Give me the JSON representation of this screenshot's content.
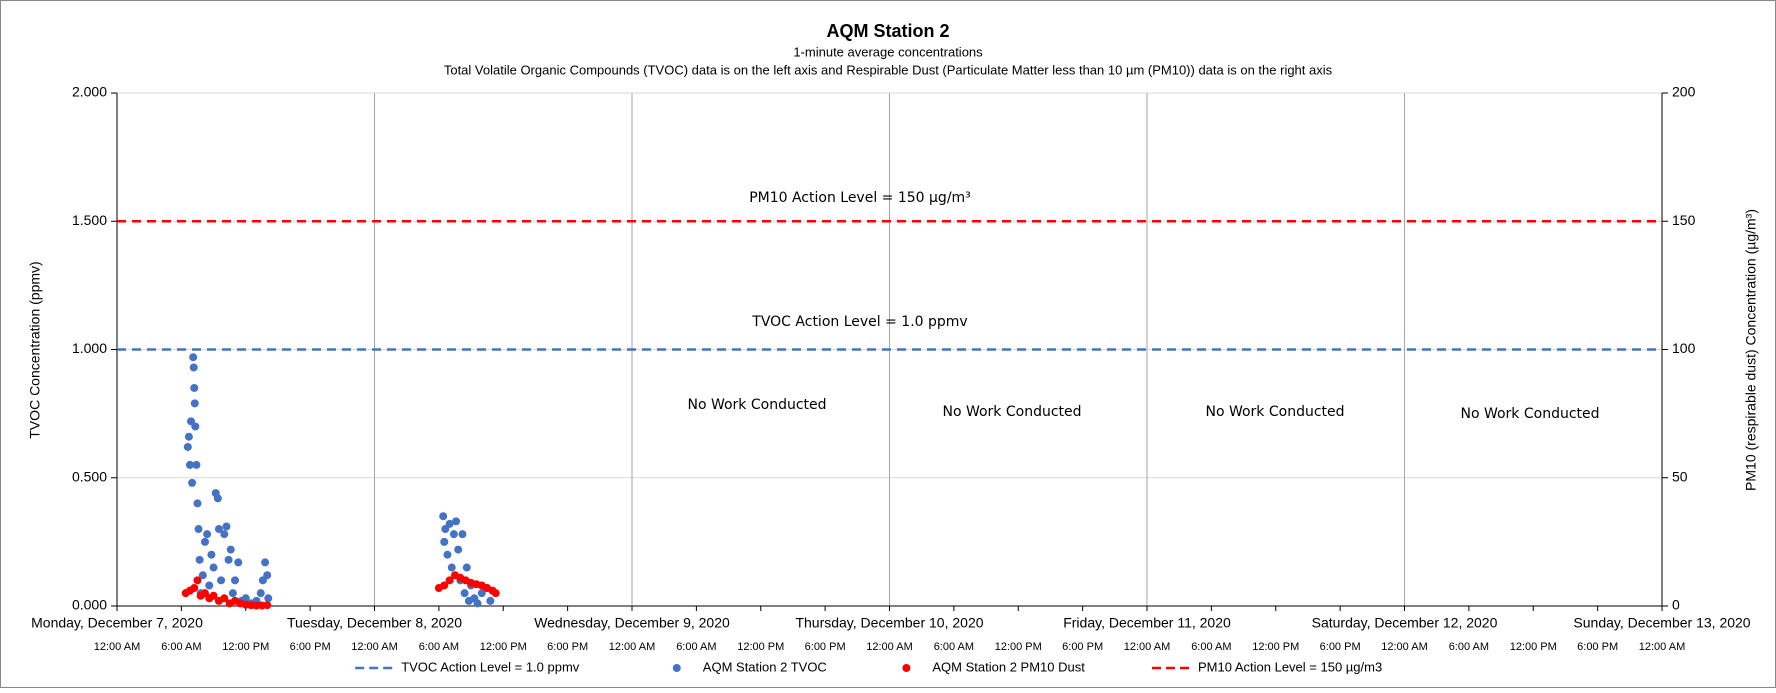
{
  "chart_data": {
    "type": "scatter",
    "title": "AQM Station 2",
    "subtitle": "1-minute average concentrations",
    "subtitle2": "Total Volatile Organic Compounds (TVOC) data is on the left axis and Respirable Dust (Particulate Matter less than 10 µm (PM10)) data is on the right axis",
    "y_label": "TVOC Concentration (ppmv)",
    "y2_label": "PM10 (respirable dust) Concentration (µg/m³)",
    "annotations": [
      "PM10 Action Level = 150 µg/m³",
      "TVOC Action Level = 1.0 ppmv",
      "No Work Conducted",
      "No Work Conducted",
      "No Work Conducted",
      "No Work Conducted"
    ],
    "xlim": [
      "2020-12-07 00:00",
      "2020-12-13 00:00"
    ],
    "xticks": [
      {
        "value": "2020-12-07 00:00",
        "label": "Monday, December 7, 2020"
      },
      {
        "value": "2020-12-08 00:00",
        "label": "Tuesday, December 8, 2020"
      },
      {
        "value": "2020-12-09 00:00",
        "label": "Wednesday, December 9, 2020"
      },
      {
        "value": "2020-12-10 00:00",
        "label": "Thursday, December 10, 2020"
      },
      {
        "value": "2020-12-11 00:00",
        "label": "Friday, December 11, 2020"
      },
      {
        "value": "2020-12-12 00:00",
        "label": "Saturday, December 12, 2020"
      },
      {
        "value": "2020-12-13 00:00",
        "label": "Sunday, December 13, 2020"
      }
    ],
    "xticks_minor": [
      {
        "value": "2020-12-07 00:00",
        "label": "12:00 AM"
      },
      {
        "value": "2020-12-07 06:00",
        "label": "6:00 AM"
      },
      {
        "value": "2020-12-07 12:00",
        "label": "12:00 PM"
      },
      {
        "value": "2020-12-07 18:00",
        "label": "6:00 PM"
      },
      {
        "value": "2020-12-08 00:00",
        "label": "12:00 AM"
      },
      {
        "value": "2020-12-08 06:00",
        "label": "6:00 AM"
      },
      {
        "value": "2020-12-08 12:00",
        "label": "12:00 PM"
      },
      {
        "value": "2020-12-08 18:00",
        "label": "6:00 PM"
      },
      {
        "value": "2020-12-09 00:00",
        "label": "12:00 AM"
      },
      {
        "value": "2020-12-09 06:00",
        "label": "6:00 AM"
      },
      {
        "value": "2020-12-09 12:00",
        "label": "12:00 PM"
      },
      {
        "value": "2020-12-09 18:00",
        "label": "6:00 PM"
      },
      {
        "value": "2020-12-10 00:00",
        "label": "12:00 AM"
      },
      {
        "value": "2020-12-10 06:00",
        "label": "6:00 AM"
      },
      {
        "value": "2020-12-10 12:00",
        "label": "12:00 PM"
      },
      {
        "value": "2020-12-10 18:00",
        "label": "6:00 PM"
      },
      {
        "value": "2020-12-11 00:00",
        "label": "12:00 AM"
      },
      {
        "value": "2020-12-11 06:00",
        "label": "6:00 AM"
      },
      {
        "value": "2020-12-11 12:00",
        "label": "12:00 PM"
      },
      {
        "value": "2020-12-11 18:00",
        "label": "6:00 PM"
      },
      {
        "value": "2020-12-12 00:00",
        "label": "12:00 AM"
      },
      {
        "value": "2020-12-12 06:00",
        "label": "6:00 AM"
      },
      {
        "value": "2020-12-12 12:00",
        "label": "12:00 PM"
      },
      {
        "value": "2020-12-12 18:00",
        "label": "6:00 PM"
      },
      {
        "value": "2020-12-13 00:00",
        "label": "12:00 AM"
      }
    ],
    "ylim": [
      0,
      2
    ],
    "yticks": [
      {
        "value": 0,
        "label": "0.000"
      },
      {
        "value": 0.5,
        "label": "0.500"
      },
      {
        "value": 1,
        "label": "1.000"
      },
      {
        "value": 1.5,
        "label": "1.500"
      },
      {
        "value": 2,
        "label": "2.000"
      }
    ],
    "y2lim": [
      0,
      200
    ],
    "y2ticks": [
      0,
      50,
      100,
      150,
      200
    ],
    "grid": true,
    "legend": "bottom",
    "series": [
      {
        "name": "TVOC Action Level = 1.0 ppmv",
        "color": "#4472c4",
        "style": "dashed",
        "x": [
          "2020-12-07 00:00",
          "2020-12-13 00:00"
        ],
        "values": [
          1,
          1
        ]
      },
      {
        "name": "AQM Station 2 TVOC",
        "color": "#4472c4",
        "style": "marker",
        "x": [
          "2020-12-07 06:36",
          "2020-12-07 06:42",
          "2020-12-07 06:48",
          "2020-12-07 06:54",
          "2020-12-07 07:00",
          "2020-12-07 07:06",
          "2020-12-07 07:09",
          "2020-12-07 07:12",
          "2020-12-07 07:15",
          "2020-12-07 07:18",
          "2020-12-07 07:24",
          "2020-12-07 07:30",
          "2020-12-07 07:36",
          "2020-12-07 07:42",
          "2020-12-07 07:48",
          "2020-12-07 08:00",
          "2020-12-07 08:12",
          "2020-12-07 08:24",
          "2020-12-07 08:36",
          "2020-12-07 08:48",
          "2020-12-07 09:00",
          "2020-12-07 09:12",
          "2020-12-07 09:24",
          "2020-12-07 09:30",
          "2020-12-07 09:42",
          "2020-12-07 10:00",
          "2020-12-07 10:12",
          "2020-12-07 10:24",
          "2020-12-07 10:36",
          "2020-12-07 10:48",
          "2020-12-07 11:00",
          "2020-12-07 11:18",
          "2020-12-07 11:36",
          "2020-12-07 12:00",
          "2020-12-07 12:30",
          "2020-12-07 13:00",
          "2020-12-07 13:24",
          "2020-12-07 13:36",
          "2020-12-07 13:48",
          "2020-12-07 14:00",
          "2020-12-07 14:06",
          "2020-12-08 06:24",
          "2020-12-08 06:30",
          "2020-12-08 06:36",
          "2020-12-08 06:48",
          "2020-12-08 07:00",
          "2020-12-08 07:12",
          "2020-12-08 07:24",
          "2020-12-08 07:36",
          "2020-12-08 07:48",
          "2020-12-08 08:00",
          "2020-12-08 08:12",
          "2020-12-08 08:24",
          "2020-12-08 08:36",
          "2020-12-08 08:48",
          "2020-12-08 09:00",
          "2020-12-08 09:18",
          "2020-12-08 09:36",
          "2020-12-08 10:00",
          "2020-12-08 10:24",
          "2020-12-08 10:48"
        ],
        "values": [
          0.62,
          0.66,
          0.55,
          0.72,
          0.48,
          0.97,
          0.93,
          0.85,
          0.79,
          0.7,
          0.55,
          0.4,
          0.3,
          0.18,
          0.05,
          0.12,
          0.25,
          0.28,
          0.08,
          0.2,
          0.15,
          0.44,
          0.42,
          0.3,
          0.1,
          0.28,
          0.31,
          0.18,
          0.22,
          0.05,
          0.1,
          0.17,
          0.02,
          0.03,
          0.01,
          0.02,
          0.05,
          0.1,
          0.17,
          0.12,
          0.03,
          0.35,
          0.25,
          0.3,
          0.2,
          0.32,
          0.15,
          0.28,
          0.33,
          0.22,
          0.1,
          0.28,
          0.05,
          0.15,
          0.02,
          0.08,
          0.03,
          0.01,
          0.05,
          0.07,
          0.02
        ]
      },
      {
        "name": "AQM Station 2 PM10 Dust",
        "color": "#ff0000",
        "style": "marker",
        "axis": "y2",
        "x": [
          "2020-12-07 06:24",
          "2020-12-07 06:48",
          "2020-12-07 07:12",
          "2020-12-07 07:30",
          "2020-12-07 07:48",
          "2020-12-07 08:12",
          "2020-12-07 08:36",
          "2020-12-07 09:00",
          "2020-12-07 09:30",
          "2020-12-07 10:00",
          "2020-12-07 10:30",
          "2020-12-07 11:00",
          "2020-12-07 11:30",
          "2020-12-07 12:00",
          "2020-12-07 12:30",
          "2020-12-07 13:00",
          "2020-12-07 13:30",
          "2020-12-07 14:00",
          "2020-12-08 06:00",
          "2020-12-08 06:30",
          "2020-12-08 07:00",
          "2020-12-08 07:30",
          "2020-12-08 08:00",
          "2020-12-08 08:30",
          "2020-12-08 09:00",
          "2020-12-08 09:30",
          "2020-12-08 10:00",
          "2020-12-08 10:30",
          "2020-12-08 11:00",
          "2020-12-08 11:18"
        ],
        "values": [
          5,
          6,
          7,
          10,
          4,
          5,
          3,
          4,
          2,
          3,
          1,
          2,
          1,
          0.5,
          0.3,
          0.2,
          0.2,
          0.3,
          7,
          8,
          10,
          12,
          11,
          10,
          9,
          8.5,
          8,
          7,
          6,
          5
        ]
      },
      {
        "name": "PM10 Action Level = 150 µg/m3",
        "color": "#ff0000",
        "style": "dashed",
        "axis": "y2",
        "x": [
          "2020-12-07 00:00",
          "2020-12-13 00:00"
        ],
        "values": [
          150,
          150
        ]
      }
    ]
  }
}
